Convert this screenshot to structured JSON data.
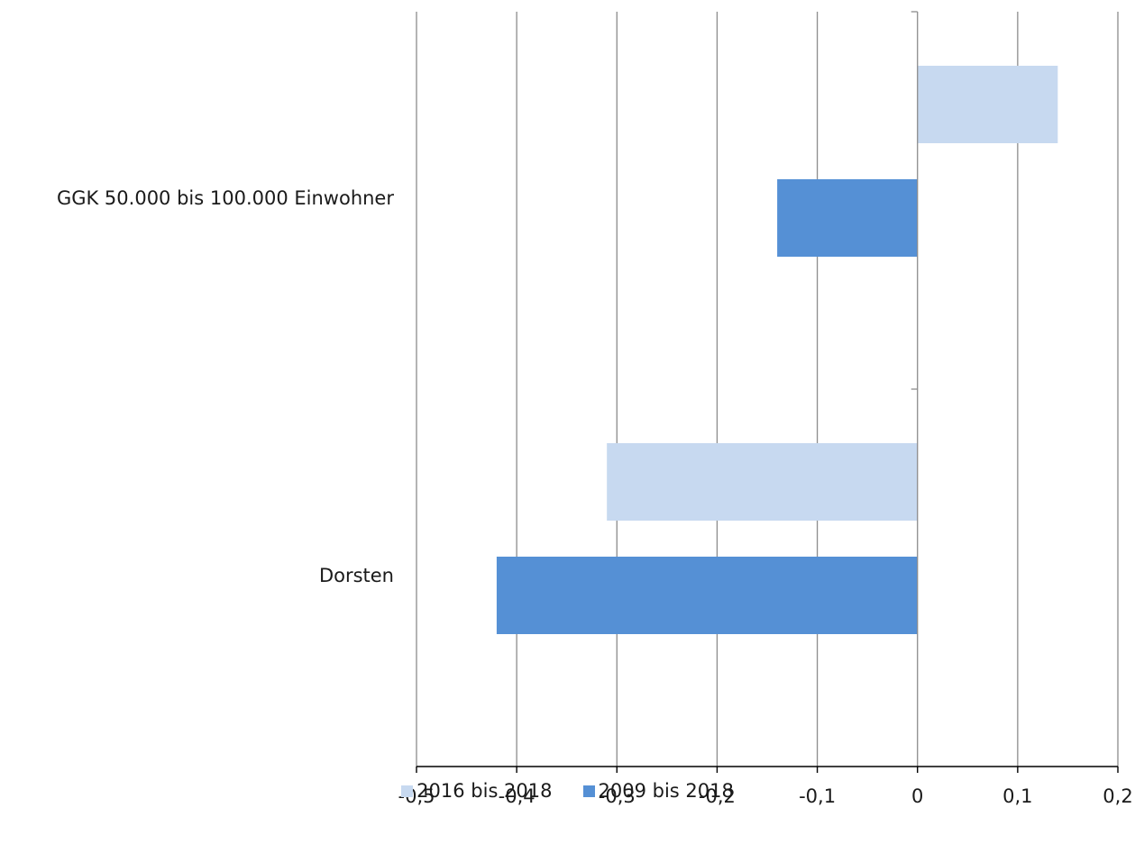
{
  "chart_data": {
    "type": "bar",
    "orientation": "horizontal",
    "categories": [
      "GGK 50.000 bis 100.000 Einwohner",
      "Dorsten"
    ],
    "series": [
      {
        "name": "2016 bis 2018",
        "color": "#c7d9f0",
        "values": [
          0.14,
          -0.31
        ]
      },
      {
        "name": "2009 bis 2018",
        "color": "#5590d5",
        "values": [
          -0.14,
          -0.42
        ]
      }
    ],
    "xlim": [
      -0.5,
      0.2
    ],
    "x_ticks": [
      -0.5,
      -0.4,
      -0.3,
      -0.2,
      -0.1,
      0,
      0.1,
      0.2
    ],
    "x_tick_labels": [
      "-0,5",
      "-0,4",
      "-0,3",
      "-0,2",
      "-0,1",
      "0",
      "0,1",
      "0,2"
    ],
    "grid": true,
    "legend_position": "bottom"
  }
}
